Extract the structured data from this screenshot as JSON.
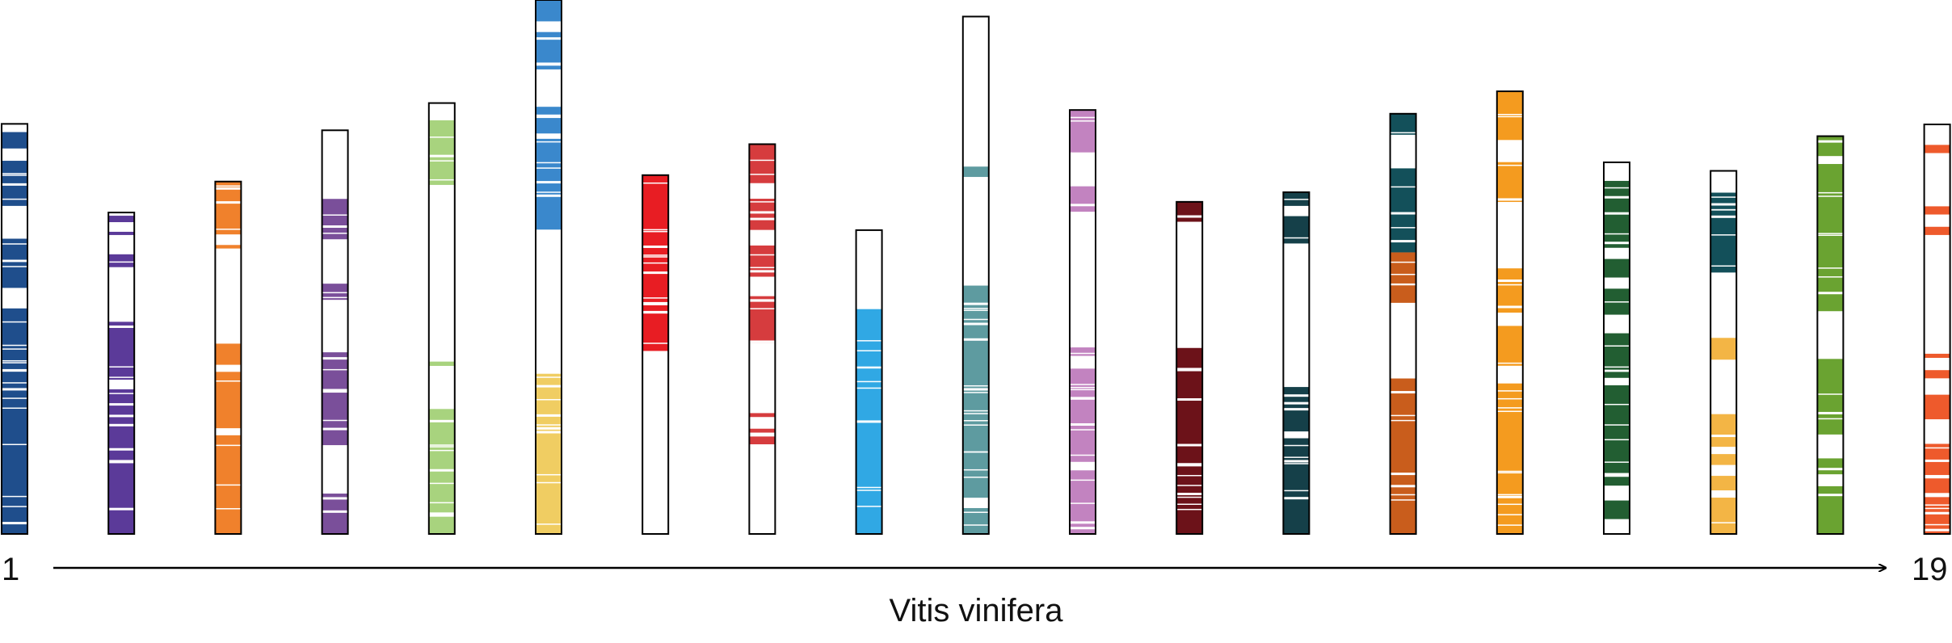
{
  "title": "Vitis vinifera",
  "axis": {
    "start_label": "1",
    "end_label": "19"
  },
  "chromosomes": [
    {
      "id": 1,
      "length": 0.768,
      "color": "#1f4e8c",
      "bands": [
        [
          0.02,
          0.06
        ],
        [
          0.09,
          0.2
        ],
        [
          0.28,
          0.4
        ],
        [
          0.45,
          1.0
        ]
      ]
    },
    {
      "id": 2,
      "length": 0.602,
      "color": "#5b3a99",
      "bands": [
        [
          0.01,
          0.03
        ],
        [
          0.06,
          0.07
        ],
        [
          0.13,
          0.17
        ],
        [
          0.34,
          0.52
        ],
        [
          0.55,
          1.0
        ]
      ]
    },
    {
      "id": 3,
      "length": 0.66,
      "color": "#f0812c",
      "bands": [
        [
          0.0,
          0.15
        ],
        [
          0.18,
          0.19
        ],
        [
          0.46,
          0.52
        ],
        [
          0.54,
          0.7
        ],
        [
          0.72,
          1.0
        ]
      ]
    },
    {
      "id": 4,
      "length": 0.756,
      "color": "#7a4f9a",
      "bands": [
        [
          0.17,
          0.27
        ],
        [
          0.38,
          0.42
        ],
        [
          0.55,
          0.78
        ],
        [
          0.9,
          1.0
        ]
      ]
    },
    {
      "id": 5,
      "length": 0.807,
      "color": "#a8d37e",
      "bands": [
        [
          0.04,
          0.19
        ],
        [
          0.6,
          0.61
        ],
        [
          0.71,
          0.95
        ],
        [
          0.96,
          1.0
        ]
      ]
    },
    {
      "id": 6,
      "length": 1.0,
      "color": "#3a88cc",
      "color2": "#f0cd62",
      "split": 0.6,
      "bands": [
        [
          0.0,
          0.04
        ],
        [
          0.06,
          0.13
        ],
        [
          0.2,
          0.25
        ],
        [
          0.26,
          0.43
        ],
        [
          0.7,
          1.0
        ]
      ]
    },
    {
      "id": 7,
      "length": 0.672,
      "color": "#e81d23",
      "bands": [
        [
          0.0,
          0.49
        ]
      ]
    },
    {
      "id": 8,
      "length": 0.73,
      "color": "#d63c3e",
      "bands": [
        [
          0.0,
          0.1
        ],
        [
          0.14,
          0.22
        ],
        [
          0.26,
          0.34
        ],
        [
          0.39,
          0.51
        ],
        [
          0.69,
          0.7
        ],
        [
          0.73,
          0.74
        ],
        [
          0.75,
          0.77
        ]
      ]
    },
    {
      "id": 9,
      "length": 0.569,
      "color": "#30a8e4",
      "bands": [
        [
          0.26,
          1.0
        ]
      ]
    },
    {
      "id": 10,
      "length": 0.969,
      "color": "#5e9ba0",
      "bands": [
        [
          0.29,
          0.31
        ],
        [
          0.52,
          0.93
        ],
        [
          0.95,
          1.0
        ]
      ]
    },
    {
      "id": 11,
      "length": 0.794,
      "color": "#c283c0",
      "bands": [
        [
          0.0,
          0.1
        ],
        [
          0.18,
          0.24
        ],
        [
          0.56,
          0.58
        ],
        [
          0.61,
          0.83
        ],
        [
          0.85,
          1.0
        ]
      ]
    },
    {
      "id": 12,
      "length": 0.622,
      "color": "#6c1219",
      "bands": [
        [
          0.0,
          0.06
        ],
        [
          0.44,
          0.5
        ],
        [
          0.51,
          1.0
        ]
      ]
    },
    {
      "id": 13,
      "length": 0.64,
      "color": "#154049",
      "bands": [
        [
          0.0,
          0.04
        ],
        [
          0.07,
          0.15
        ],
        [
          0.57,
          0.7
        ],
        [
          0.72,
          1.0
        ]
      ]
    },
    {
      "id": 14,
      "length": 0.787,
      "color": "#13505a",
      "color2": "#c95d1c",
      "split": 0.33,
      "bands": [
        [
          0.0,
          0.05
        ],
        [
          0.13,
          0.33
        ],
        [
          0.33,
          0.45
        ],
        [
          0.63,
          1.0
        ]
      ]
    },
    {
      "id": 15,
      "length": 0.829,
      "color": "#f49b1f",
      "bands": [
        [
          0.0,
          0.11
        ],
        [
          0.16,
          0.25
        ],
        [
          0.4,
          0.5
        ],
        [
          0.53,
          0.62
        ],
        [
          0.66,
          1.0
        ]
      ]
    },
    {
      "id": 16,
      "length": 0.696,
      "color": "#225e32",
      "bands": [
        [
          0.05,
          0.23
        ],
        [
          0.26,
          0.31
        ],
        [
          0.34,
          0.41
        ],
        [
          0.46,
          0.58
        ],
        [
          0.6,
          0.87
        ],
        [
          0.91,
          0.96
        ]
      ]
    },
    {
      "id": 17,
      "length": 0.68,
      "color": "#13505a",
      "color2": "#f3b545",
      "split": 0.43,
      "bands": [
        [
          0.06,
          0.28
        ],
        [
          0.46,
          0.52
        ],
        [
          0.67,
          0.76
        ],
        [
          0.78,
          0.81
        ],
        [
          0.84,
          0.88
        ],
        [
          0.9,
          1.0
        ]
      ]
    },
    {
      "id": 18,
      "length": 0.745,
      "color": "#6aa331",
      "bands": [
        [
          0.0,
          0.05
        ],
        [
          0.07,
          0.44
        ],
        [
          0.56,
          0.75
        ],
        [
          0.81,
          0.85
        ],
        [
          0.88,
          1.0
        ]
      ]
    },
    {
      "id": 19,
      "length": 0.767,
      "color": "#ee5a2c",
      "bands": [
        [
          0.05,
          0.07
        ],
        [
          0.2,
          0.22
        ],
        [
          0.25,
          0.27
        ],
        [
          0.56,
          0.57
        ],
        [
          0.6,
          0.62
        ],
        [
          0.66,
          0.72
        ],
        [
          0.78,
          0.9
        ],
        [
          0.91,
          1.0
        ]
      ]
    }
  ]
}
